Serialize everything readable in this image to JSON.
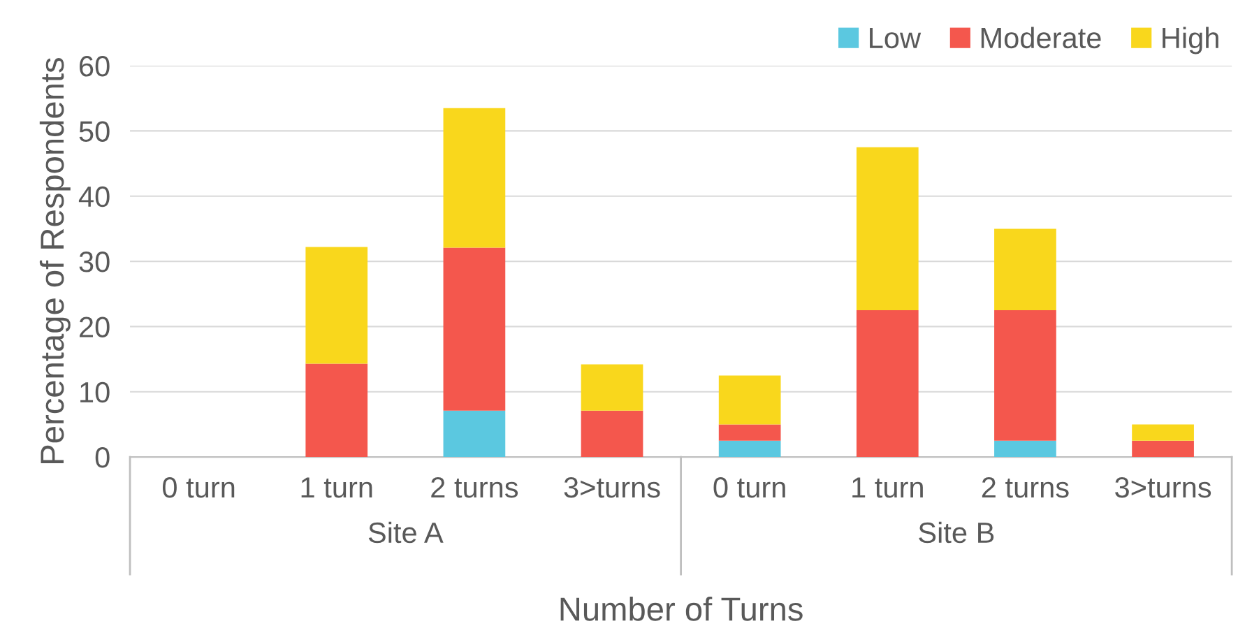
{
  "chart_data": {
    "type": "bar",
    "stacked": true,
    "xlabel": "Number of Turns",
    "ylabel": "Percentage of Respondents",
    "categories": [
      "0 turn",
      "1 turn",
      "2 turns",
      "3>turns",
      "0 turn",
      "1 turn",
      "2 turns",
      "3>turns"
    ],
    "series": [
      {
        "name": "Low",
        "color": "#5bc8e0",
        "values": [
          0,
          0,
          7.1,
          0,
          2.5,
          0,
          2.5,
          0
        ]
      },
      {
        "name": "Moderate",
        "color": "#f4574d",
        "values": [
          0,
          14.3,
          25,
          7.1,
          2.5,
          22.5,
          20,
          2.5
        ]
      },
      {
        "name": "High",
        "color": "#f9d71c",
        "values": [
          0,
          17.9,
          21.4,
          7.1,
          7.5,
          25,
          12.5,
          2.5
        ]
      }
    ],
    "annotations": [
      "Site A",
      "Site B"
    ],
    "ylim": [
      0,
      60
    ],
    "yticks": [
      0,
      10,
      20,
      30,
      40,
      50,
      60
    ],
    "grid": "y",
    "legend": "top right"
  }
}
